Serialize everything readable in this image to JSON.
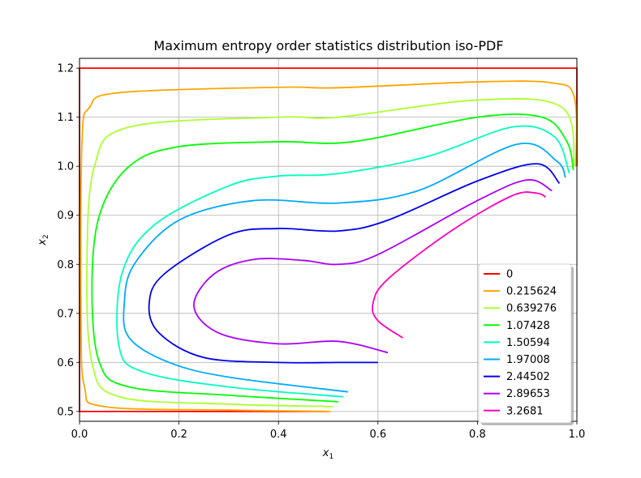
{
  "chart_data": {
    "type": "line",
    "title": "Maximum entropy order statistics distribution iso-PDF",
    "xlabel": "x",
    "xlabel_sub": "1",
    "ylabel": "x",
    "ylabel_sub": "2",
    "xlim": [
      0.0,
      1.0
    ],
    "ylim": [
      0.48,
      1.22
    ],
    "xticks": [
      "0.0",
      "0.2",
      "0.4",
      "0.6",
      "0.8",
      "1.0"
    ],
    "xtick_values": [
      0.0,
      0.2,
      0.4,
      0.6,
      0.8,
      1.0
    ],
    "yticks": [
      "0.5",
      "0.6",
      "0.7",
      "0.8",
      "0.9",
      "1.0",
      "1.1",
      "1.2"
    ],
    "ytick_values": [
      0.5,
      0.6,
      0.7,
      0.8,
      0.9,
      1.0,
      1.1,
      1.2
    ],
    "grid": true,
    "legend_position": "lower-right",
    "series": [
      {
        "name": "0",
        "color": "#ff0000",
        "points": [
          [
            0.5,
            0.5
          ],
          [
            0.0,
            0.5
          ],
          [
            0.0,
            1.2
          ],
          [
            1.0,
            1.2
          ],
          [
            1.0,
            1.0
          ]
        ]
      },
      {
        "name": "0.215624",
        "color": "#ffa500",
        "points": [
          [
            0.505,
            0.5
          ],
          [
            0.3,
            0.503
          ],
          [
            0.05,
            0.51
          ],
          [
            0.01,
            0.55
          ],
          [
            0.003,
            0.7
          ],
          [
            0.005,
            1.05
          ],
          [
            0.02,
            1.12
          ],
          [
            0.08,
            1.15
          ],
          [
            0.4,
            1.161
          ],
          [
            0.52,
            1.16
          ],
          [
            0.8,
            1.172
          ],
          [
            0.95,
            1.17
          ],
          [
            0.995,
            1.14
          ],
          [
            0.998,
            1.0
          ]
        ]
      },
      {
        "name": "0.639276",
        "color": "#adff2f",
        "points": [
          [
            0.51,
            0.51
          ],
          [
            0.3,
            0.515
          ],
          [
            0.08,
            0.53
          ],
          [
            0.025,
            0.6
          ],
          [
            0.015,
            0.8
          ],
          [
            0.03,
            1.0
          ],
          [
            0.1,
            1.08
          ],
          [
            0.4,
            1.1
          ],
          [
            0.52,
            1.1
          ],
          [
            0.8,
            1.135
          ],
          [
            0.97,
            1.12
          ],
          [
            0.995,
            1.0
          ]
        ]
      },
      {
        "name": "1.07428",
        "color": "#00ff00",
        "points": [
          [
            0.52,
            0.52
          ],
          [
            0.3,
            0.533
          ],
          [
            0.1,
            0.55
          ],
          [
            0.04,
            0.6
          ],
          [
            0.025,
            0.75
          ],
          [
            0.04,
            0.9
          ],
          [
            0.1,
            1.0
          ],
          [
            0.2,
            1.04
          ],
          [
            0.4,
            1.05
          ],
          [
            0.55,
            1.05
          ],
          [
            0.8,
            1.1
          ],
          [
            0.93,
            1.1
          ],
          [
            0.98,
            1.05
          ],
          [
            0.993,
            0.992
          ]
        ]
      },
      {
        "name": "1.50594",
        "color": "#00ffbf",
        "points": [
          [
            0.53,
            0.53
          ],
          [
            0.3,
            0.55
          ],
          [
            0.13,
            0.58
          ],
          [
            0.08,
            0.63
          ],
          [
            0.085,
            0.78
          ],
          [
            0.15,
            0.88
          ],
          [
            0.3,
            0.96
          ],
          [
            0.4,
            0.98
          ],
          [
            0.52,
            0.985
          ],
          [
            0.7,
            1.02
          ],
          [
            0.87,
            1.08
          ],
          [
            0.955,
            1.06
          ],
          [
            0.985,
            0.985
          ]
        ]
      },
      {
        "name": "1.97008",
        "color": "#00aaff",
        "points": [
          [
            0.54,
            0.54
          ],
          [
            0.3,
            0.57
          ],
          [
            0.18,
            0.6
          ],
          [
            0.1,
            0.65
          ],
          [
            0.09,
            0.72
          ],
          [
            0.11,
            0.8
          ],
          [
            0.2,
            0.89
          ],
          [
            0.35,
            0.93
          ],
          [
            0.52,
            0.925
          ],
          [
            0.68,
            0.95
          ],
          [
            0.88,
            1.045
          ],
          [
            0.96,
            1.01
          ],
          [
            0.977,
            0.977
          ]
        ]
      },
      {
        "name": "2.44502",
        "color": "#0000ee",
        "points": [
          [
            0.6,
            0.6
          ],
          [
            0.52,
            0.6
          ],
          [
            0.4,
            0.6
          ],
          [
            0.25,
            0.61
          ],
          [
            0.16,
            0.66
          ],
          [
            0.14,
            0.72
          ],
          [
            0.17,
            0.78
          ],
          [
            0.3,
            0.86
          ],
          [
            0.4,
            0.873
          ],
          [
            0.52,
            0.868
          ],
          [
            0.62,
            0.89
          ],
          [
            0.8,
            0.97
          ],
          [
            0.92,
            1.005
          ],
          [
            0.965,
            0.965
          ]
        ]
      },
      {
        "name": "2.89653",
        "color": "#aa00ff",
        "points": [
          [
            0.62,
            0.62
          ],
          [
            0.52,
            0.643
          ],
          [
            0.4,
            0.638
          ],
          [
            0.28,
            0.66
          ],
          [
            0.23,
            0.715
          ],
          [
            0.27,
            0.78
          ],
          [
            0.35,
            0.81
          ],
          [
            0.45,
            0.808
          ],
          [
            0.52,
            0.8
          ],
          [
            0.6,
            0.82
          ],
          [
            0.8,
            0.93
          ],
          [
            0.9,
            0.972
          ],
          [
            0.95,
            0.95
          ]
        ]
      },
      {
        "name": "3.2681",
        "color": "#ff00bb",
        "points": [
          [
            0.65,
            0.65
          ],
          [
            0.6,
            0.685
          ],
          [
            0.59,
            0.72
          ],
          [
            0.62,
            0.77
          ],
          [
            0.75,
            0.87
          ],
          [
            0.87,
            0.94
          ],
          [
            0.92,
            0.945
          ],
          [
            0.937,
            0.937
          ]
        ]
      }
    ]
  }
}
